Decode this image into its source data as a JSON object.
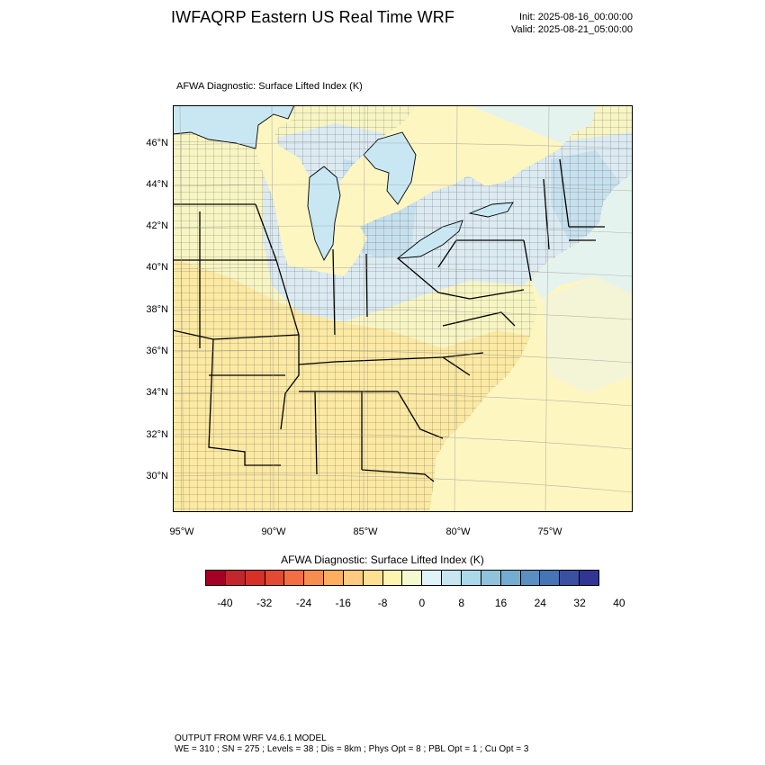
{
  "header": {
    "title": "IWFAQRP Eastern US Real Time WRF",
    "init": "Init: 2025-08-16_00:00:00",
    "valid": "Valid: 2025-08-21_05:00:00"
  },
  "map": {
    "subtitle": "AFWA Diagnostic: Surface Lifted Index   (K)",
    "lat_labels": [
      "46°N",
      "44°N",
      "42°N",
      "40°N",
      "38°N",
      "36°N",
      "34°N",
      "32°N",
      "30°N"
    ],
    "lon_labels": [
      "95°W",
      "90°W",
      "85°W",
      "80°W",
      "75°W"
    ],
    "colors": {
      "warm_land": "#fbe9a4",
      "neutral_land": "#f8f5c4",
      "cool_land": "#dcebf2",
      "cooler_land": "#c7e0ee",
      "ocean": "#fdf6c0",
      "ocean_cool": "#e5f3ee",
      "lake": "#c9e7f3",
      "boundary": "#000000"
    }
  },
  "colorbar": {
    "title": "AFWA Diagnostic: Surface Lifted Index  (K)",
    "colors": [
      "#a50026",
      "#c1272d",
      "#d73027",
      "#e34a33",
      "#f46d43",
      "#f88d52",
      "#fdae61",
      "#fec980",
      "#fee090",
      "#fff3b0",
      "#f4fad0",
      "#e0f3f8",
      "#c7e6ef",
      "#abd9e9",
      "#90c2dc",
      "#74add1",
      "#5b8fc2",
      "#4575b4",
      "#3b50a0",
      "#313695"
    ],
    "labels": [
      "-40",
      "-32",
      "-24",
      "-16",
      "-8",
      "0",
      "8",
      "16",
      "24",
      "32",
      "40"
    ]
  },
  "footer": {
    "line1": "OUTPUT FROM WRF V4.6.1 MODEL",
    "line2": "WE = 310 ; SN = 275 ; Levels = 38 ; Dis = 8km ; Phys Opt = 8 ; PBL Opt = 1 ; Cu Opt = 3"
  }
}
